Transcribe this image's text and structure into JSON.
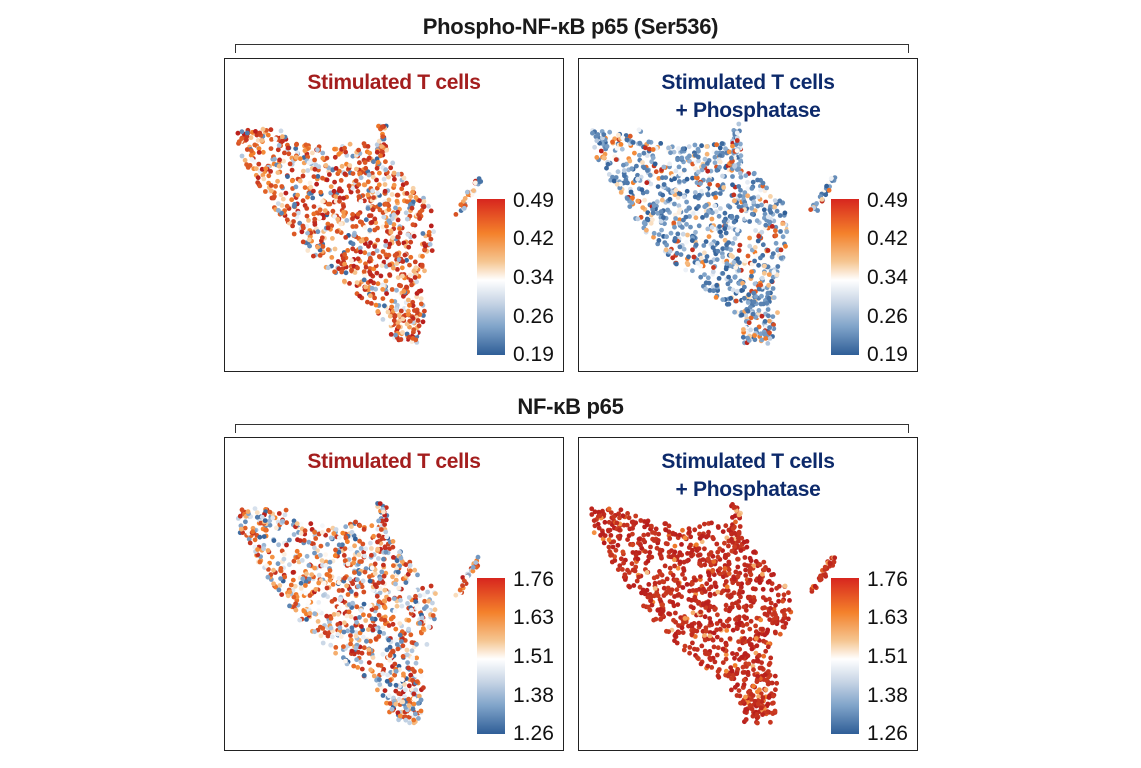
{
  "section_top_title": "Phospho-NF-κB p65 (Ser536)",
  "section_bottom_title": "NF-κB p65",
  "chart_data": [
    {
      "type": "scatter",
      "title": "Stimulated T cells",
      "title_line2": "",
      "title_color": "#a41e1e",
      "section": "Phospho-NF-κB p65 (Ser536)",
      "colorbar_ticks": [
        "0.49",
        "0.42",
        "0.34",
        "0.26",
        "0.19"
      ],
      "color_range": [
        0.19,
        0.49
      ],
      "expression_level": "high",
      "seed": 11
    },
    {
      "type": "scatter",
      "title": "Stimulated T cells",
      "title_line2": "+ Phosphatase",
      "title_color": "#0d2a6b",
      "section": "Phospho-NF-κB p65 (Ser536)",
      "colorbar_ticks": [
        "0.49",
        "0.42",
        "0.34",
        "0.26",
        "0.19"
      ],
      "color_range": [
        0.19,
        0.49
      ],
      "expression_level": "low",
      "seed": 23
    },
    {
      "type": "scatter",
      "title": "Stimulated T cells",
      "title_line2": "",
      "title_color": "#a41e1e",
      "section": "NF-κB p65",
      "colorbar_ticks": [
        "1.76",
        "1.63",
        "1.51",
        "1.38",
        "1.26"
      ],
      "color_range": [
        1.26,
        1.76
      ],
      "expression_level": "mixed",
      "seed": 37
    },
    {
      "type": "scatter",
      "title": "Stimulated T cells",
      "title_line2": "+ Phosphatase",
      "title_color": "#0d2a6b",
      "section": "NF-κB p65",
      "colorbar_ticks": [
        "1.76",
        "1.63",
        "1.51",
        "1.38",
        "1.26"
      ],
      "color_range": [
        1.26,
        1.76
      ],
      "expression_level": "very-high",
      "seed": 53
    }
  ]
}
